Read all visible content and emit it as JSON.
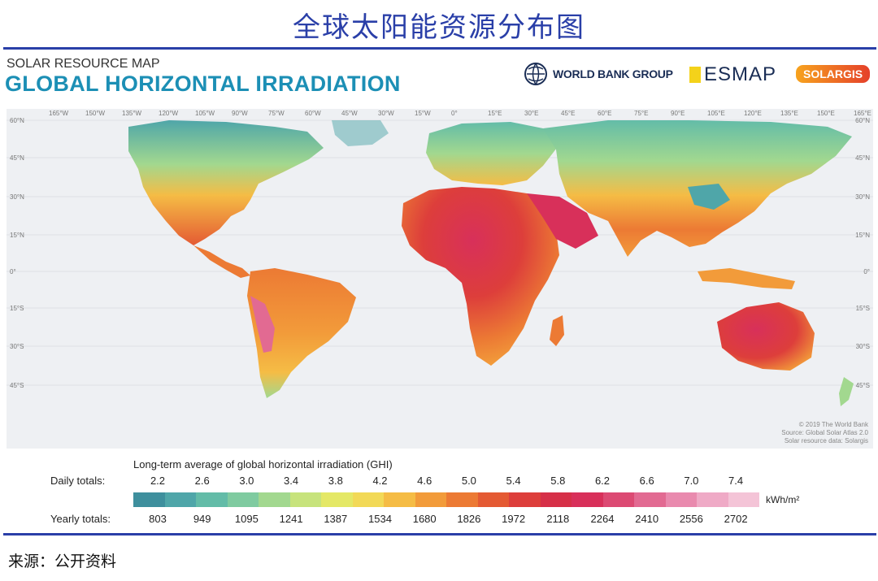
{
  "page_title": "全球太阳能资源分布图",
  "header": {
    "subtitle": "SOLAR RESOURCE MAP",
    "title": "GLOBAL HORIZONTAL IRRADIATION",
    "logos": {
      "world_bank": "WORLD BANK GROUP",
      "esmap": "ESMAP",
      "solargis": "SOLARGIS"
    }
  },
  "map": {
    "longitude_labels": [
      "165°W",
      "150°W",
      "135°W",
      "120°W",
      "105°W",
      "90°W",
      "75°W",
      "60°W",
      "45°W",
      "30°W",
      "15°W",
      "0°",
      "15°E",
      "30°E",
      "45°E",
      "60°E",
      "75°E",
      "90°E",
      "105°E",
      "120°E",
      "135°E",
      "150°E",
      "165°E"
    ],
    "latitude_labels": [
      "60°N",
      "45°N",
      "30°N",
      "15°N",
      "0°",
      "15°S",
      "30°S",
      "45°S"
    ],
    "credits": [
      "© 2019 The World Bank",
      "Source: Global Solar Atlas 2.0",
      "Solar resource data: Solargis"
    ],
    "ocean_color": "#eef0f3",
    "land_low_color": "#4fa6a9",
    "land_high_color": "#d8305a"
  },
  "legend": {
    "caption": "Long-term average of global horizontal irradiation (GHI)",
    "daily_label": "Daily totals:",
    "yearly_label": "Yearly totals:",
    "daily_values": [
      "2.2",
      "2.6",
      "3.0",
      "3.4",
      "3.8",
      "4.2",
      "4.6",
      "5.0",
      "5.4",
      "5.8",
      "6.2",
      "6.6",
      "7.0",
      "7.4"
    ],
    "yearly_values": [
      "803",
      "949",
      "1095",
      "1241",
      "1387",
      "1534",
      "1680",
      "1826",
      "1972",
      "2118",
      "2264",
      "2410",
      "2556",
      "2702"
    ],
    "unit": "kWh/m²",
    "colors": [
      "#3e8f9d",
      "#4fa6a9",
      "#63bca8",
      "#7fcba0",
      "#a2d88f",
      "#c7e37c",
      "#e4e866",
      "#f2d957",
      "#f5bc45",
      "#f29b3a",
      "#ec7a34",
      "#e45a33",
      "#dd3e3b",
      "#d63048",
      "#d8305a",
      "#dc4a73",
      "#e26a92",
      "#e98aae",
      "#efaac6",
      "#f4c4d7"
    ]
  },
  "source_note": "来源：公开资料"
}
